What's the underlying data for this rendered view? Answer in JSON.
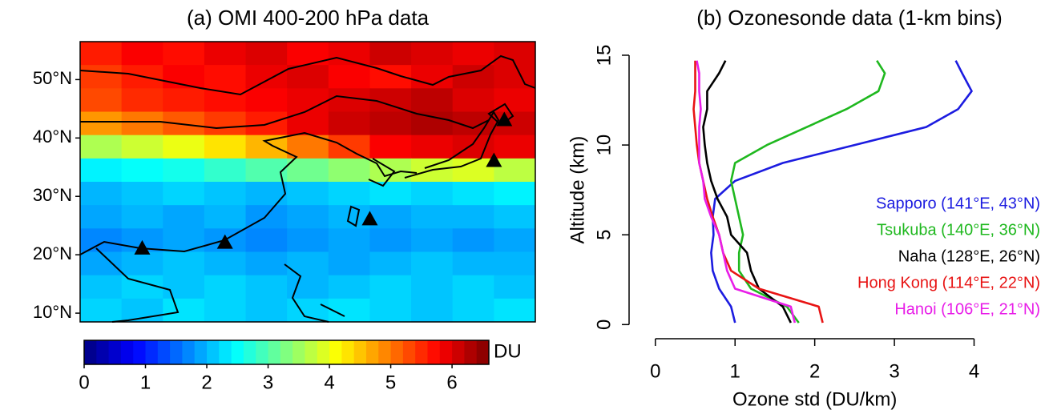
{
  "chart_data": [
    {
      "type": "heatmap",
      "title": "(a) OMI 400-200 hPa data",
      "xlim": [
        100,
        144
      ],
      "ylim": [
        8.5,
        56.5
      ],
      "yticks": [
        {
          "value": 10,
          "label": "10°N"
        },
        {
          "value": 20,
          "label": "20°N"
        },
        {
          "value": 30,
          "label": "30°N"
        },
        {
          "value": 40,
          "label": "40°N"
        },
        {
          "value": 50,
          "label": "50°N"
        }
      ],
      "z": [
        [
          5.6,
          5.8,
          5.7,
          5.9,
          6.0,
          5.8,
          5.9,
          6.1,
          6.0,
          5.9,
          6.0
        ],
        [
          5.4,
          5.6,
          5.8,
          5.7,
          5.9,
          6.0,
          5.8,
          5.7,
          5.9,
          6.1,
          6.0
        ],
        [
          5.3,
          5.5,
          5.6,
          5.7,
          5.8,
          5.9,
          6.0,
          6.1,
          6.2,
          6.0,
          5.9
        ],
        [
          4.8,
          5.0,
          5.2,
          5.4,
          5.6,
          5.9,
          6.1,
          6.2,
          6.3,
          6.2,
          6.1
        ],
        [
          3.6,
          3.8,
          4.0,
          4.3,
          4.6,
          5.0,
          5.4,
          5.8,
          5.9,
          6.0,
          5.9
        ],
        [
          2.4,
          2.5,
          2.6,
          2.8,
          3.0,
          3.2,
          3.4,
          3.6,
          3.8,
          3.9,
          3.7
        ],
        [
          2.0,
          2.1,
          2.2,
          2.1,
          2.0,
          2.1,
          2.2,
          2.3,
          2.2,
          2.3,
          2.4
        ],
        [
          1.9,
          2.0,
          1.9,
          2.0,
          1.8,
          1.9,
          2.0,
          1.9,
          2.0,
          2.0,
          2.1
        ],
        [
          1.7,
          1.8,
          1.9,
          1.8,
          1.7,
          1.8,
          1.9,
          1.8,
          1.9,
          1.8,
          1.9
        ],
        [
          1.9,
          2.0,
          2.1,
          2.0,
          1.9,
          2.0,
          1.9,
          2.0,
          2.1,
          2.0,
          2.0
        ],
        [
          2.1,
          2.2,
          2.1,
          2.2,
          2.1,
          2.0,
          2.1,
          2.2,
          2.1,
          2.2,
          2.1
        ],
        [
          2.2,
          2.1,
          2.3,
          2.2,
          2.1,
          2.2,
          2.3,
          2.2,
          2.1,
          2.2,
          2.3
        ]
      ],
      "colorbar": {
        "label": "DU",
        "lim": [
          0,
          6.6
        ],
        "ticks": [
          0,
          1,
          2,
          3,
          4,
          5,
          6
        ]
      },
      "points": {
        "x": [
          141,
          140,
          128,
          114,
          106
        ],
        "y": [
          43,
          36,
          26,
          22,
          21
        ],
        "color": "#000000"
      }
    },
    {
      "type": "line",
      "title": "(b) Ozonesonde data (1-km bins)",
      "xlabel": "Ozone std (DU/km)",
      "ylabel": "Altitude (km)",
      "xlim": [
        -0.33,
        4.85
      ],
      "ylim": [
        -1.1,
        15.4
      ],
      "xticks": [
        0,
        1,
        2,
        3,
        4
      ],
      "yticks": [
        0,
        5,
        10,
        15
      ],
      "y": [
        0.1,
        1,
        2,
        3,
        4,
        5,
        6,
        7,
        8,
        9,
        10,
        11,
        12,
        13,
        14,
        14.7
      ],
      "legend": "right",
      "series": [
        {
          "name": "Sapporo (141°E, 43°N)",
          "color": "#1c1ce0",
          "values": [
            1.0,
            0.95,
            0.8,
            0.72,
            0.7,
            0.73,
            0.72,
            0.75,
            1.0,
            1.6,
            2.5,
            3.4,
            3.8,
            3.97,
            3.85,
            3.77
          ]
        },
        {
          "name": "Tsukuba (140°E, 36°N)",
          "color": "#1fb81f",
          "values": [
            1.8,
            1.65,
            1.2,
            1.05,
            1.05,
            1.1,
            1.05,
            1.0,
            0.95,
            1.0,
            1.4,
            1.9,
            2.4,
            2.8,
            2.88,
            2.78
          ]
        },
        {
          "name": "Naha (128°E, 26°N)",
          "color": "#000000",
          "values": [
            1.7,
            1.6,
            1.3,
            1.2,
            1.15,
            0.95,
            0.9,
            0.78,
            0.7,
            0.65,
            0.62,
            0.6,
            0.65,
            0.65,
            0.8,
            0.88
          ]
        },
        {
          "name": "Hong Kong (114°E, 22°N)",
          "color": "#e81414",
          "values": [
            2.1,
            2.05,
            1.3,
            0.95,
            0.85,
            0.8,
            0.72,
            0.65,
            0.6,
            0.55,
            0.52,
            0.5,
            0.48,
            0.5,
            0.5,
            0.5
          ]
        },
        {
          "name": "Hanoi (106°E, 21°N)",
          "color": "#e81ee8",
          "values": [
            1.75,
            1.7,
            1.0,
            0.9,
            0.85,
            0.8,
            0.7,
            0.62,
            0.6,
            0.55,
            0.55,
            0.55,
            0.57,
            0.55,
            0.55,
            0.52
          ]
        }
      ]
    }
  ]
}
